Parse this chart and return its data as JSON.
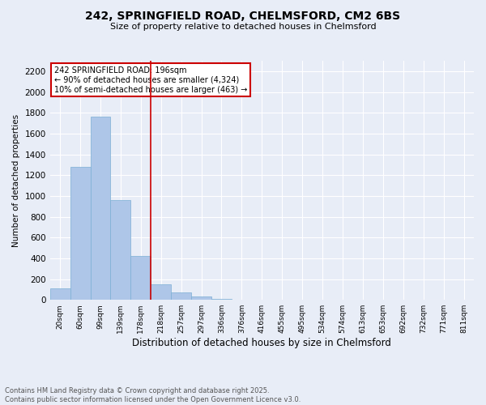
{
  "title_line1": "242, SPRINGFIELD ROAD, CHELMSFORD, CM2 6BS",
  "title_line2": "Size of property relative to detached houses in Chelmsford",
  "xlabel": "Distribution of detached houses by size in Chelmsford",
  "ylabel": "Number of detached properties",
  "categories": [
    "20sqm",
    "60sqm",
    "99sqm",
    "139sqm",
    "178sqm",
    "218sqm",
    "257sqm",
    "297sqm",
    "336sqm",
    "376sqm",
    "416sqm",
    "455sqm",
    "495sqm",
    "534sqm",
    "574sqm",
    "613sqm",
    "653sqm",
    "692sqm",
    "732sqm",
    "771sqm",
    "811sqm"
  ],
  "values": [
    110,
    1280,
    1760,
    960,
    420,
    150,
    70,
    30,
    10,
    0,
    0,
    0,
    0,
    0,
    0,
    0,
    0,
    0,
    0,
    0,
    0
  ],
  "bar_color": "#aec6e8",
  "bar_edge_color": "#7bafd4",
  "vline_x": 4.5,
  "vline_color": "#cc0000",
  "annotation_text": "242 SPRINGFIELD ROAD: 196sqm\n← 90% of detached houses are smaller (4,324)\n10% of semi-detached houses are larger (463) →",
  "annotation_box_color": "#ffffff",
  "annotation_box_edge_color": "#cc0000",
  "ylim": [
    0,
    2300
  ],
  "yticks": [
    0,
    200,
    400,
    600,
    800,
    1000,
    1200,
    1400,
    1600,
    1800,
    2000,
    2200
  ],
  "background_color": "#e8edf7",
  "plot_background_color": "#e8edf7",
  "grid_color": "#ffffff",
  "footer_line1": "Contains HM Land Registry data © Crown copyright and database right 2025.",
  "footer_line2": "Contains public sector information licensed under the Open Government Licence v3.0."
}
